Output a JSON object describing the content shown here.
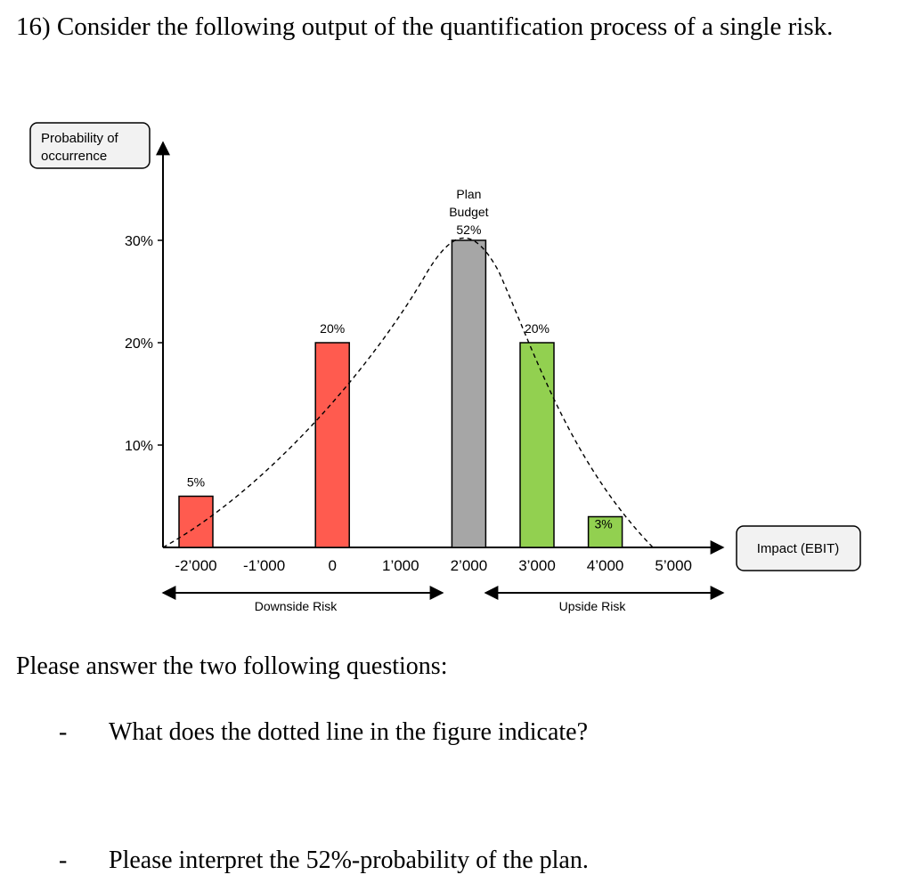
{
  "question": {
    "title": "16) Consider the following output of the quantification process of a single risk.",
    "prompt": "Please answer the two following questions:",
    "items": [
      {
        "bullet": "-",
        "text": "What does the dotted line in the figure indicate?"
      },
      {
        "bullet": "-",
        "text": "Please interpret the 52%-probability of the plan."
      }
    ]
  },
  "chart_data": {
    "type": "bar",
    "y_axis_label": "Probability of occurrence",
    "x_axis_label": "Impact (EBIT)",
    "x_ticks": [
      "-2’000",
      "-1’000",
      "0",
      "1’000",
      "2’000",
      "3’000",
      "4’000",
      "5’000"
    ],
    "y_ticks": [
      "10%",
      "20%",
      "30%"
    ],
    "ylim": [
      0,
      30
    ],
    "xlim": [
      -2000,
      5000
    ],
    "bars": [
      {
        "x": -2000,
        "value": 5,
        "label": "5%",
        "color": "#ff5b4f"
      },
      {
        "x": 0,
        "value": 20,
        "label": "20%",
        "color": "#ff5b4f"
      },
      {
        "x": 2000,
        "value": 30,
        "label_lines": [
          "Plan",
          "Budget",
          "52%"
        ],
        "color": "#a6a6a6"
      },
      {
        "x": 3000,
        "value": 20,
        "label": "20%",
        "color": "#92d050"
      },
      {
        "x": 4000,
        "value": 3,
        "label": "3%",
        "color": "#92d050"
      }
    ],
    "curve": "dashed",
    "ranges": [
      {
        "label": "Downside Risk",
        "from": -2000,
        "to": 2000
      },
      {
        "label": "Upside Risk",
        "from": 2200,
        "to": 5000
      }
    ]
  }
}
